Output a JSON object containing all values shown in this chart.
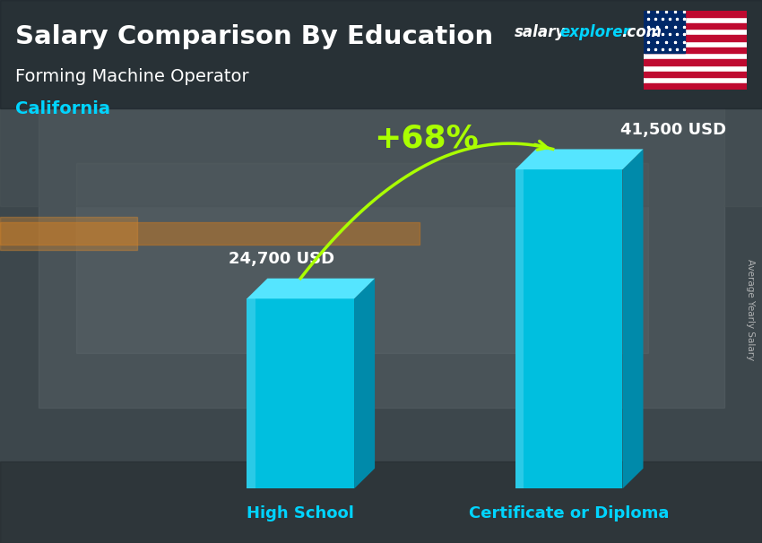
{
  "title_main": "Salary Comparison By Education",
  "title_main_color": "#ffffff",
  "subtitle": "Forming Machine Operator",
  "subtitle_color": "#ffffff",
  "location": "California",
  "location_color": "#00d4ff",
  "wm_salary": "salary",
  "wm_explorer": "explorer",
  "wm_dot_com": ".com",
  "wm_salary_color": "#ffffff",
  "wm_explorer_color": "#00d4ff",
  "wm_dotcom_color": "#ffffff",
  "side_label": "Average Yearly Salary",
  "side_label_color": "#cccccc",
  "categories": [
    "High School",
    "Certificate or Diploma"
  ],
  "values": [
    24700,
    41500
  ],
  "value_labels": [
    "24,700 USD",
    "41,500 USD"
  ],
  "bar_face_color": "#00bfdf",
  "bar_top_color": "#55e5ff",
  "bar_side_color": "#008aaa",
  "bar_highlight_color": "#aaeeff",
  "pct_change": "+68%",
  "pct_color": "#aaff00",
  "arrow_color": "#aaff00",
  "label_color": "#00d4ff",
  "value_label_color": "#ffffff",
  "bg_top_color": "#4a5a60",
  "bg_bottom_color": "#2a3035",
  "figsize": [
    8.5,
    6.06
  ],
  "dpi": 100
}
